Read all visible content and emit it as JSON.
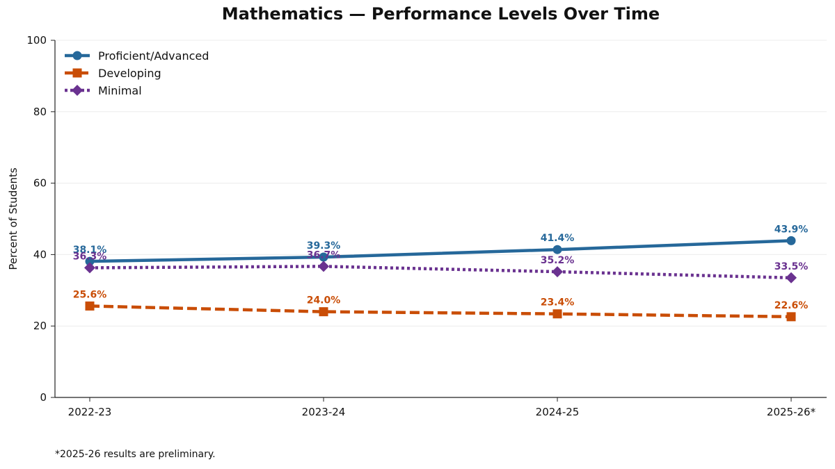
{
  "chart_data": {
    "type": "line",
    "title": "Mathematics — Performance Levels Over Time",
    "xlabel": "",
    "ylabel": "Percent of Students",
    "categories": [
      "2022-23",
      "2023-24",
      "2024-25",
      "2025-26*"
    ],
    "ylim": [
      0,
      100
    ],
    "yticks": [
      0,
      20,
      40,
      60,
      80,
      100
    ],
    "grid": "horizontal",
    "legend_position": "top-left",
    "series": [
      {
        "name": "Proficient/Advanced",
        "values": [
          38.1,
          39.3,
          41.4,
          43.9
        ],
        "labels": [
          "38.1%",
          "39.3%",
          "41.4%",
          "43.9%"
        ],
        "color": "#26689a",
        "line_style": "solid",
        "marker": "circle"
      },
      {
        "name": "Developing",
        "values": [
          25.6,
          24.0,
          23.4,
          22.6
        ],
        "labels": [
          "25.6%",
          "24.0%",
          "23.4%",
          "22.6%"
        ],
        "color": "#c94d06",
        "line_style": "dashed",
        "marker": "square"
      },
      {
        "name": "Minimal",
        "values": [
          36.3,
          36.7,
          35.2,
          33.5
        ],
        "labels": [
          "36.3%",
          "36.7%",
          "35.2%",
          "33.5%"
        ],
        "color": "#6a3290",
        "line_style": "dotted",
        "marker": "diamond"
      }
    ],
    "footnote": "*2025-26 results are preliminary."
  }
}
